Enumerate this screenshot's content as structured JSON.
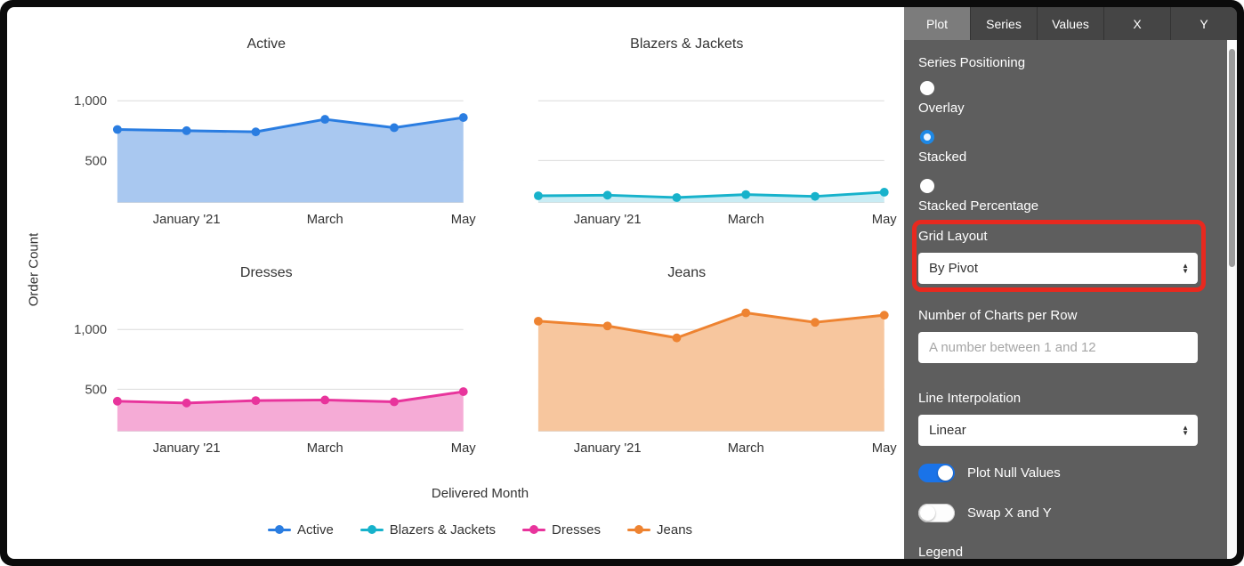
{
  "panel": {
    "tabs": [
      {
        "label": "Plot",
        "active": true
      },
      {
        "label": "Series",
        "active": false
      },
      {
        "label": "Values",
        "active": false
      },
      {
        "label": "X",
        "active": false
      },
      {
        "label": "Y",
        "active": false
      }
    ],
    "series_positioning": {
      "label": "Series Positioning",
      "options": [
        {
          "label": "Overlay",
          "selected": false
        },
        {
          "label": "Stacked",
          "selected": true
        },
        {
          "label": "Stacked Percentage",
          "selected": false
        }
      ]
    },
    "grid_layout": {
      "label": "Grid Layout",
      "value": "By Pivot"
    },
    "charts_per_row": {
      "label": "Number of Charts per Row",
      "value": "",
      "placeholder": "A number between 1 and 12"
    },
    "line_interpolation": {
      "label": "Line Interpolation",
      "value": "Linear"
    },
    "toggles": [
      {
        "label": "Plot Null Values",
        "on": true
      },
      {
        "label": "Swap X and Y",
        "on": false
      }
    ],
    "legend_section_label": "Legend",
    "icons": {
      "up": "▲",
      "down": "▼"
    },
    "accent_color": "#1a73e8",
    "annotation_color": "#e8291f"
  },
  "chart_data": {
    "type": "area",
    "layout": "small-multiples-grid-by-pivot",
    "x_axis_title": "Delivered Month",
    "y_axis_title": "Order Count",
    "categories": [
      "",
      "January '21",
      "",
      "March",
      "",
      "May"
    ],
    "yticks": [
      500,
      1000
    ],
    "ylim": [
      150,
      1250
    ],
    "grid": true,
    "legend_position": "bottom",
    "series": [
      {
        "name": "Active",
        "color": "#2a7de1",
        "fill": "#a9c8f0",
        "values": [
          760,
          750,
          740,
          845,
          775,
          860
        ],
        "y_labels": true
      },
      {
        "name": "Blazers & Jackets",
        "color": "#17b2cb",
        "fill": "#c9ecf4",
        "values": [
          205,
          210,
          190,
          215,
          200,
          235
        ],
        "y_labels": false
      },
      {
        "name": "Dresses",
        "color": "#e8349c",
        "fill": "#f5abd6",
        "values": [
          400,
          385,
          405,
          410,
          395,
          480
        ],
        "y_labels": true
      },
      {
        "name": "Jeans",
        "color": "#ee8331",
        "fill": "#f7c69e",
        "values": [
          1070,
          1030,
          930,
          1140,
          1060,
          1120
        ],
        "y_labels": false
      }
    ]
  }
}
